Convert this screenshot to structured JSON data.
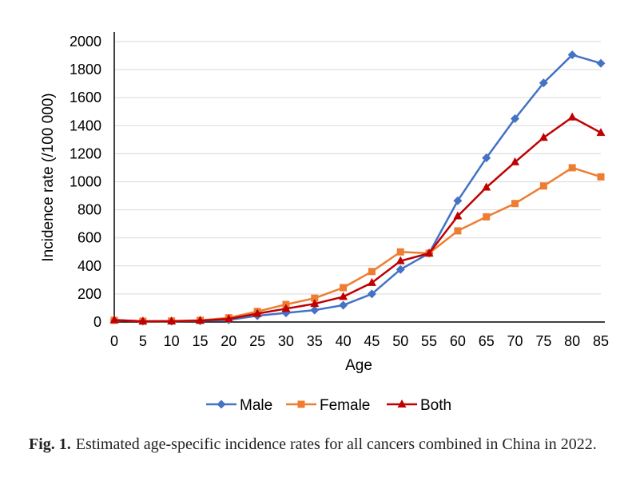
{
  "chart_data": {
    "type": "line",
    "title": "",
    "xlabel": "Age",
    "ylabel": "Incidence rate (/100 000)",
    "x": [
      0,
      5,
      10,
      15,
      20,
      25,
      30,
      35,
      40,
      45,
      50,
      55,
      60,
      65,
      70,
      75,
      80,
      85
    ],
    "ylim": [
      0,
      2000
    ],
    "yticks": [
      0,
      200,
      400,
      600,
      800,
      1000,
      1200,
      1400,
      1600,
      1800,
      2000
    ],
    "grid": true,
    "legend_position": "bottom",
    "series": [
      {
        "name": "Male",
        "color": "#4472c4",
        "marker": "diamond",
        "values": [
          15,
          5,
          5,
          8,
          15,
          45,
          65,
          85,
          120,
          200,
          375,
          490,
          865,
          1170,
          1450,
          1705,
          1905,
          1845
        ]
      },
      {
        "name": "Female",
        "color": "#ed7d31",
        "marker": "square",
        "values": [
          12,
          6,
          7,
          12,
          30,
          75,
          125,
          170,
          245,
          360,
          500,
          490,
          650,
          750,
          845,
          970,
          1100,
          1035
        ]
      },
      {
        "name": "Both",
        "color": "#c00000",
        "marker": "triangle",
        "values": [
          14,
          5,
          6,
          10,
          22,
          60,
          95,
          130,
          180,
          280,
          435,
          490,
          755,
          960,
          1140,
          1315,
          1460,
          1350
        ]
      }
    ]
  },
  "caption": {
    "label": "Fig. 1.",
    "text": "Estimated age-specific incidence rates for all cancers combined in China in 2022."
  }
}
